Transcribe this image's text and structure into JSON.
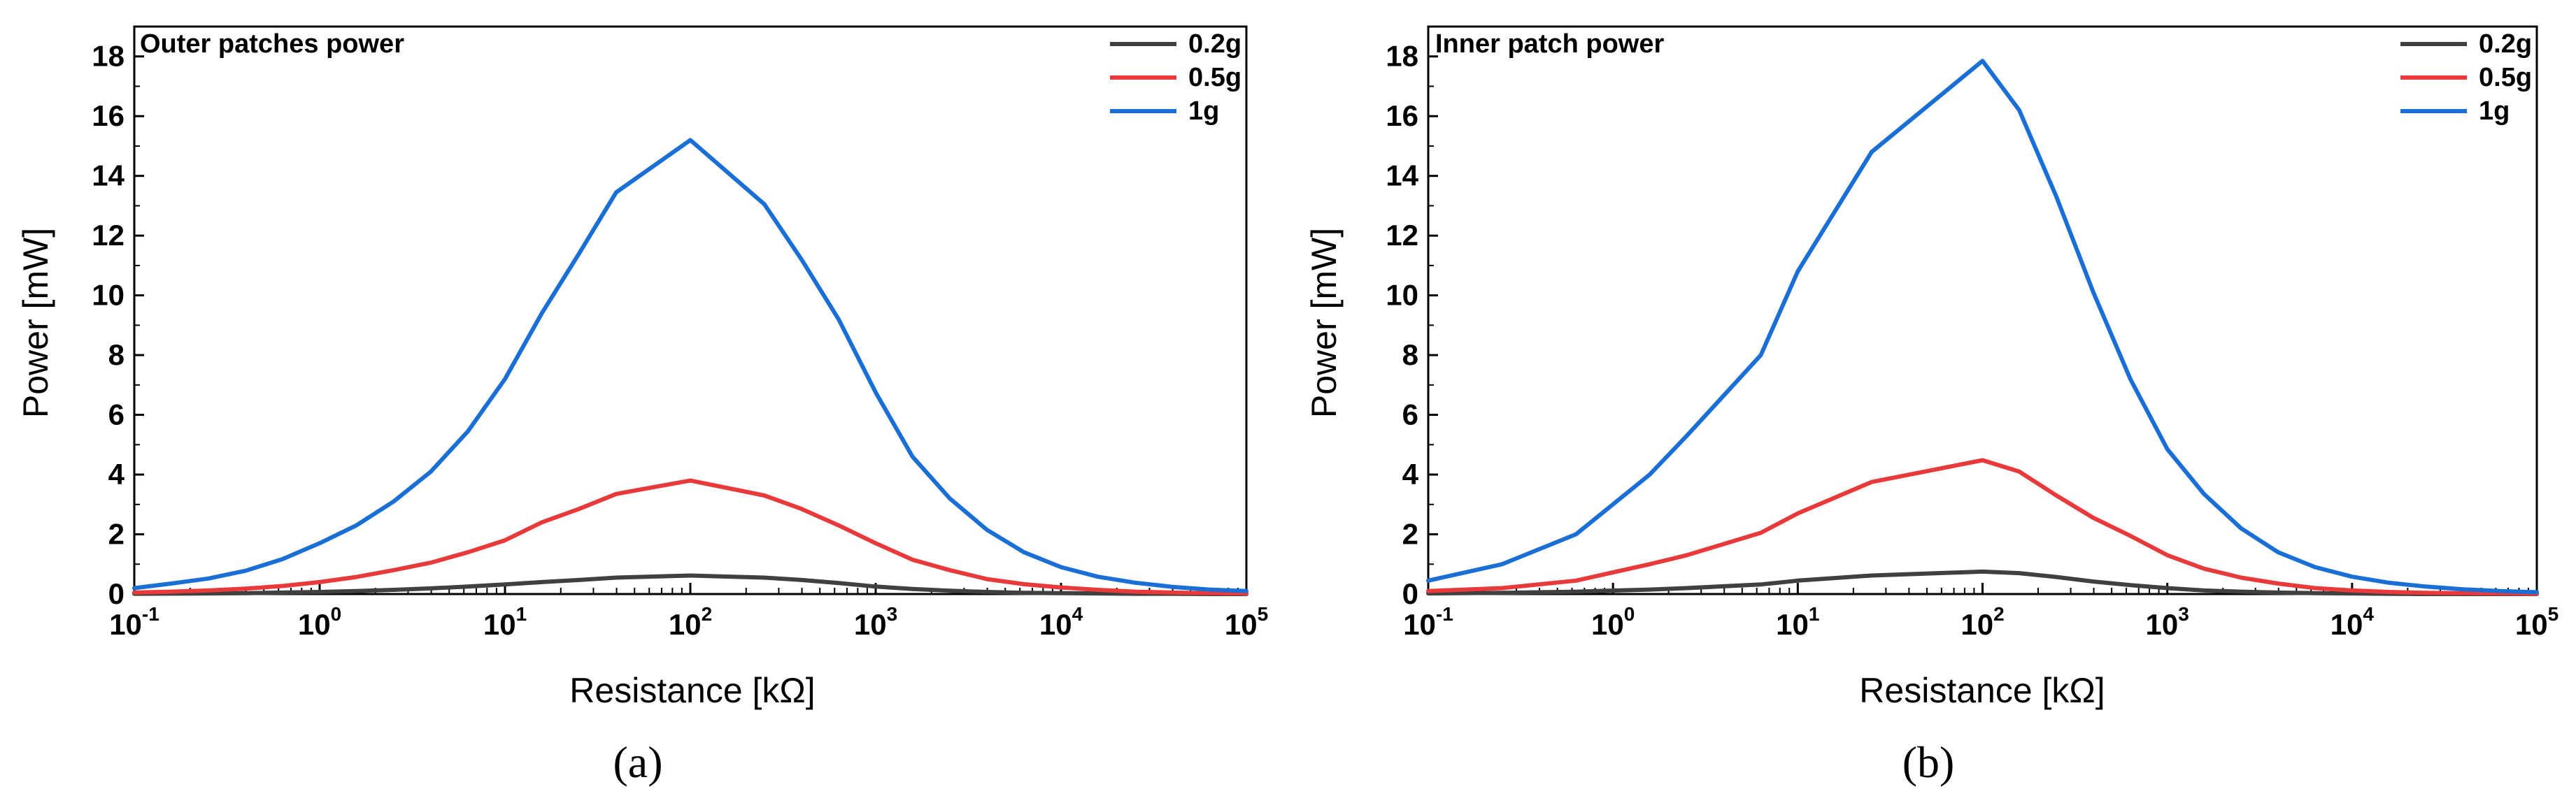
{
  "chart_data": [
    {
      "type": "line",
      "title": "Outer patches power",
      "caption": "(a)",
      "xlabel": "Resistance [kΩ]",
      "ylabel": "Power [mW]",
      "xscale": "log",
      "xlim": [
        0.1,
        100000
      ],
      "ylim": [
        0,
        19
      ],
      "yticks": [
        0,
        2,
        4,
        6,
        8,
        10,
        12,
        14,
        16,
        18
      ],
      "xtick_base": "10",
      "xtick_exponents": [
        "-1",
        "0",
        "1",
        "2",
        "3",
        "4",
        "5"
      ],
      "legend_position": "top-right",
      "x": [
        0.1,
        0.158,
        0.251,
        0.398,
        0.631,
        1,
        1.58,
        2.51,
        3.98,
        6.31,
        10,
        15.8,
        25.1,
        39.8,
        100,
        251,
        398,
        631,
        1000,
        1580,
        2510,
        3980,
        6310,
        10000,
        15800,
        25100,
        39800,
        63100,
        100000
      ],
      "series": [
        {
          "name": "0.2g",
          "color": "#404040",
          "values": [
            0.01,
            0.015,
            0.02,
            0.03,
            0.05,
            0.07,
            0.1,
            0.14,
            0.19,
            0.25,
            0.32,
            0.4,
            0.47,
            0.55,
            0.62,
            0.55,
            0.47,
            0.37,
            0.25,
            0.17,
            0.11,
            0.07,
            0.04,
            0.03,
            0.02,
            0.01,
            0.01,
            0.0,
            0.0
          ]
        },
        {
          "name": "0.5g",
          "color": "#e83a3a",
          "values": [
            0.05,
            0.08,
            0.12,
            0.18,
            0.27,
            0.4,
            0.57,
            0.8,
            1.05,
            1.4,
            1.8,
            2.4,
            2.85,
            3.35,
            3.8,
            3.3,
            2.85,
            2.3,
            1.7,
            1.15,
            0.8,
            0.5,
            0.33,
            0.22,
            0.14,
            0.08,
            0.05,
            0.03,
            0.02
          ]
        },
        {
          "name": "1g",
          "color": "#1a6fd6",
          "values": [
            0.2,
            0.35,
            0.52,
            0.78,
            1.17,
            1.7,
            2.3,
            3.1,
            4.1,
            5.45,
            7.2,
            9.4,
            11.4,
            13.45,
            15.2,
            13.05,
            11.2,
            9.2,
            6.75,
            4.6,
            3.2,
            2.15,
            1.4,
            0.9,
            0.58,
            0.38,
            0.24,
            0.15,
            0.1
          ]
        }
      ]
    },
    {
      "type": "line",
      "title": "Inner patch power",
      "caption": "(b)",
      "xlabel": "Resistance [kΩ]",
      "ylabel": "Power [mW]",
      "xscale": "log",
      "xlim": [
        0.1,
        100000
      ],
      "ylim": [
        0,
        19
      ],
      "yticks": [
        0,
        2,
        4,
        6,
        8,
        10,
        12,
        14,
        16,
        18
      ],
      "xtick_base": "10",
      "xtick_exponents": [
        "-1",
        "0",
        "1",
        "2",
        "3",
        "4",
        "5"
      ],
      "legend_position": "top-right",
      "x": [
        0.1,
        0.251,
        0.631,
        1.58,
        2.51,
        6.31,
        10,
        25.1,
        100,
        158,
        251,
        398,
        631,
        1000,
        1580,
        2510,
        3980,
        6310,
        10000,
        15800,
        25100,
        39800,
        63100,
        100000
      ],
      "series": [
        {
          "name": "0.2g",
          "color": "#404040",
          "values": [
            0.02,
            0.04,
            0.08,
            0.15,
            0.2,
            0.32,
            0.45,
            0.62,
            0.75,
            0.7,
            0.57,
            0.42,
            0.3,
            0.2,
            0.12,
            0.08,
            0.05,
            0.03,
            0.02,
            0.01,
            0.0,
            0.0,
            0.0,
            0.0
          ]
        },
        {
          "name": "0.5g",
          "color": "#e83a3a",
          "values": [
            0.1,
            0.2,
            0.45,
            1.0,
            1.3,
            2.05,
            2.7,
            3.75,
            4.48,
            4.1,
            3.3,
            2.55,
            1.95,
            1.3,
            0.85,
            0.55,
            0.35,
            0.2,
            0.12,
            0.07,
            0.04,
            0.03,
            0.02,
            0.01
          ]
        },
        {
          "name": "1g",
          "color": "#1a6fd6",
          "values": [
            0.45,
            1.0,
            2.0,
            4.0,
            5.3,
            8.0,
            10.8,
            14.8,
            17.85,
            16.2,
            13.3,
            10.1,
            7.2,
            4.85,
            3.35,
            2.2,
            1.4,
            0.9,
            0.58,
            0.38,
            0.25,
            0.16,
            0.1,
            0.06
          ]
        }
      ]
    }
  ]
}
